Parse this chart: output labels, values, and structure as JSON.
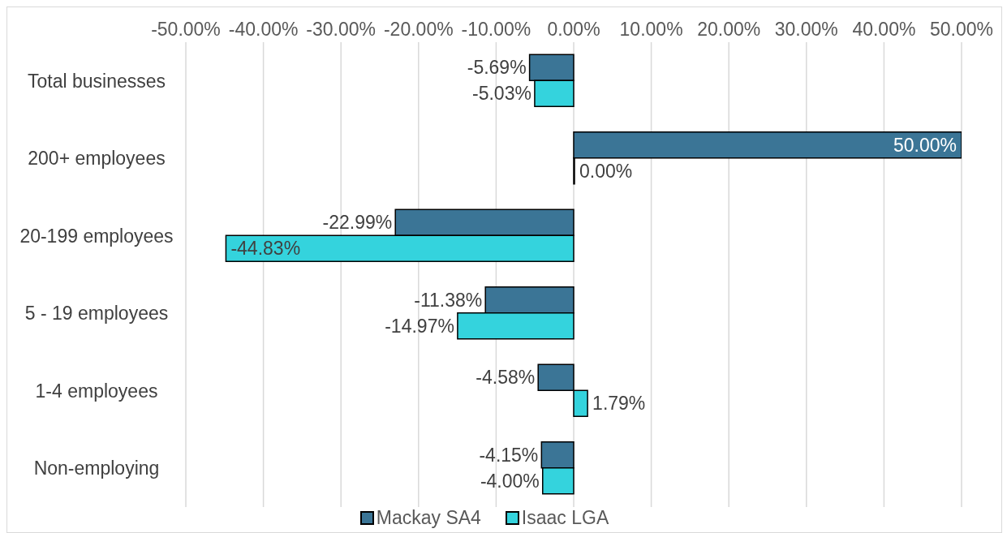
{
  "chart_data": {
    "type": "bar",
    "orientation": "horizontal",
    "categories": [
      "Total businesses",
      "200+ employees",
      "20-199 employees",
      "5 - 19 employees",
      "1-4 employees",
      "Non-employing"
    ],
    "series": [
      {
        "name": "Mackay SA4",
        "color": "#3b7596",
        "values": [
          -5.69,
          50.0,
          -22.99,
          -11.38,
          -4.58,
          -4.15
        ],
        "value_labels": [
          "-5.69%",
          "50.00%",
          "-22.99%",
          "-11.38%",
          "-4.58%",
          "-4.15%"
        ]
      },
      {
        "name": "Isaac LGA",
        "color": "#34d3dd",
        "values": [
          -5.03,
          0.0,
          -44.83,
          -14.97,
          1.79,
          -4.0
        ],
        "value_labels": [
          "-5.03%",
          "0.00%",
          "-44.83%",
          "-14.97%",
          "1.79%",
          "-4.00%"
        ]
      }
    ],
    "xlim": [
      -50,
      50
    ],
    "xticks": [
      {
        "value": -50,
        "label": "-50.00%"
      },
      {
        "value": -40,
        "label": "-40.00%"
      },
      {
        "value": -30,
        "label": "-30.00%"
      },
      {
        "value": -20,
        "label": "-20.00%"
      },
      {
        "value": -10,
        "label": "-10.00%"
      },
      {
        "value": 0,
        "label": "0.00%"
      },
      {
        "value": 10,
        "label": "10.00%"
      },
      {
        "value": 20,
        "label": "20.00%"
      },
      {
        "value": 30,
        "label": "30.00%"
      },
      {
        "value": 40,
        "label": "40.00%"
      },
      {
        "value": 50,
        "label": "50.00%"
      }
    ],
    "grid": "x",
    "legend": "bottom"
  }
}
